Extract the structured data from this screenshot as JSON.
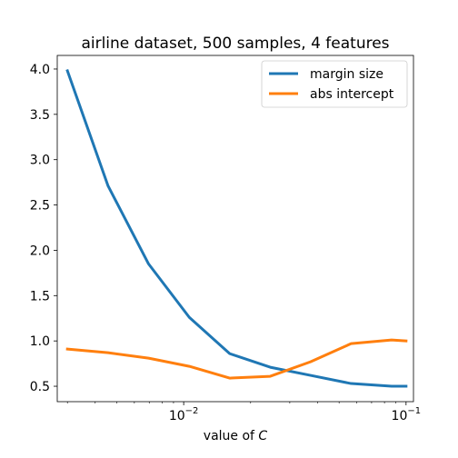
{
  "chart_data": {
    "type": "line",
    "title": "airline dataset, 500 samples, 4 features",
    "xlabel_prefix": "value of ",
    "xlabel_var": "C",
    "ylabel": "",
    "xscale": "log",
    "xlim": [
      0.0027,
      0.108
    ],
    "ylim": [
      0.33,
      4.15
    ],
    "yticks": [
      0.5,
      1.0,
      1.5,
      2.0,
      2.5,
      3.0,
      3.5,
      4.0
    ],
    "ytick_labels": [
      "0.5",
      "1.0",
      "1.5",
      "2.0",
      "2.5",
      "3.0",
      "3.5",
      "4.0"
    ],
    "xticks_major": [
      {
        "value": 0.01,
        "base": "10",
        "exp": "−2"
      },
      {
        "value": 0.1,
        "base": "10",
        "exp": "−1"
      }
    ],
    "grid": false,
    "legend_position": "top-right",
    "x": [
      0.003,
      0.00457,
      0.00695,
      0.0106,
      0.0161,
      0.0245,
      0.0372,
      0.0566,
      0.0861,
      0.1
    ],
    "series": [
      {
        "name": "margin size",
        "color": "#1f77b4",
        "values": [
          3.98,
          2.71,
          1.85,
          1.26,
          0.86,
          0.71,
          0.62,
          0.53,
          0.5,
          0.5
        ]
      },
      {
        "name": "abs intercept",
        "color": "#ff7f0e",
        "values": [
          0.91,
          0.87,
          0.81,
          0.72,
          0.59,
          0.61,
          0.77,
          0.97,
          1.01,
          1.0
        ]
      }
    ]
  }
}
